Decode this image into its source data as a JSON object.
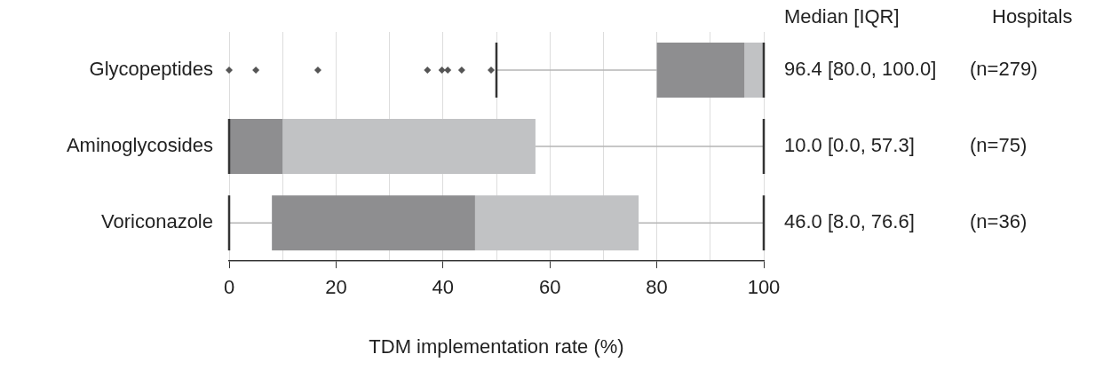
{
  "chart_data": {
    "type": "box",
    "orientation": "horizontal",
    "categories": [
      "Glycopeptides",
      "Aminoglycosides",
      "Voriconazole"
    ],
    "series": [
      {
        "color": "#8e8e90",
        "boxes": [
          {
            "low": 50,
            "q1": 80,
            "median": 96.4,
            "q3": 100,
            "high": 100,
            "outliers": [
              0,
              5,
              16.6,
              37.1,
              39.8,
              40.9,
              43.5,
              49
            ]
          },
          {
            "low": 0,
            "q1": 0,
            "median": 10,
            "q3": 57.3,
            "high": 100
          },
          {
            "low": 0,
            "q1": 8,
            "median": 46,
            "q3": 76.6,
            "high": 100
          }
        ]
      }
    ],
    "xlabel": "TDM implementation rate (%)",
    "xlim": [
      0,
      100
    ],
    "xticks": [
      0,
      {
        "value": 10,
        "label": null
      },
      20,
      {
        "value": 30,
        "label": null
      },
      40,
      {
        "value": 50,
        "label": null
      },
      60,
      {
        "value": 70,
        "label": null
      },
      80,
      {
        "value": 90,
        "label": null
      },
      100
    ],
    "grid": "x",
    "marker": "diamond",
    "legend": false,
    "annotations": [
      "Median [IQR]",
      "Hospitals",
      "96.4 [80.0, 100.0]",
      "(n=279)",
      "10.0 [0.0, 57.3]",
      "(n=75)",
      "46.0 [8.0, 76.6]",
      "(n=36)"
    ]
  }
}
